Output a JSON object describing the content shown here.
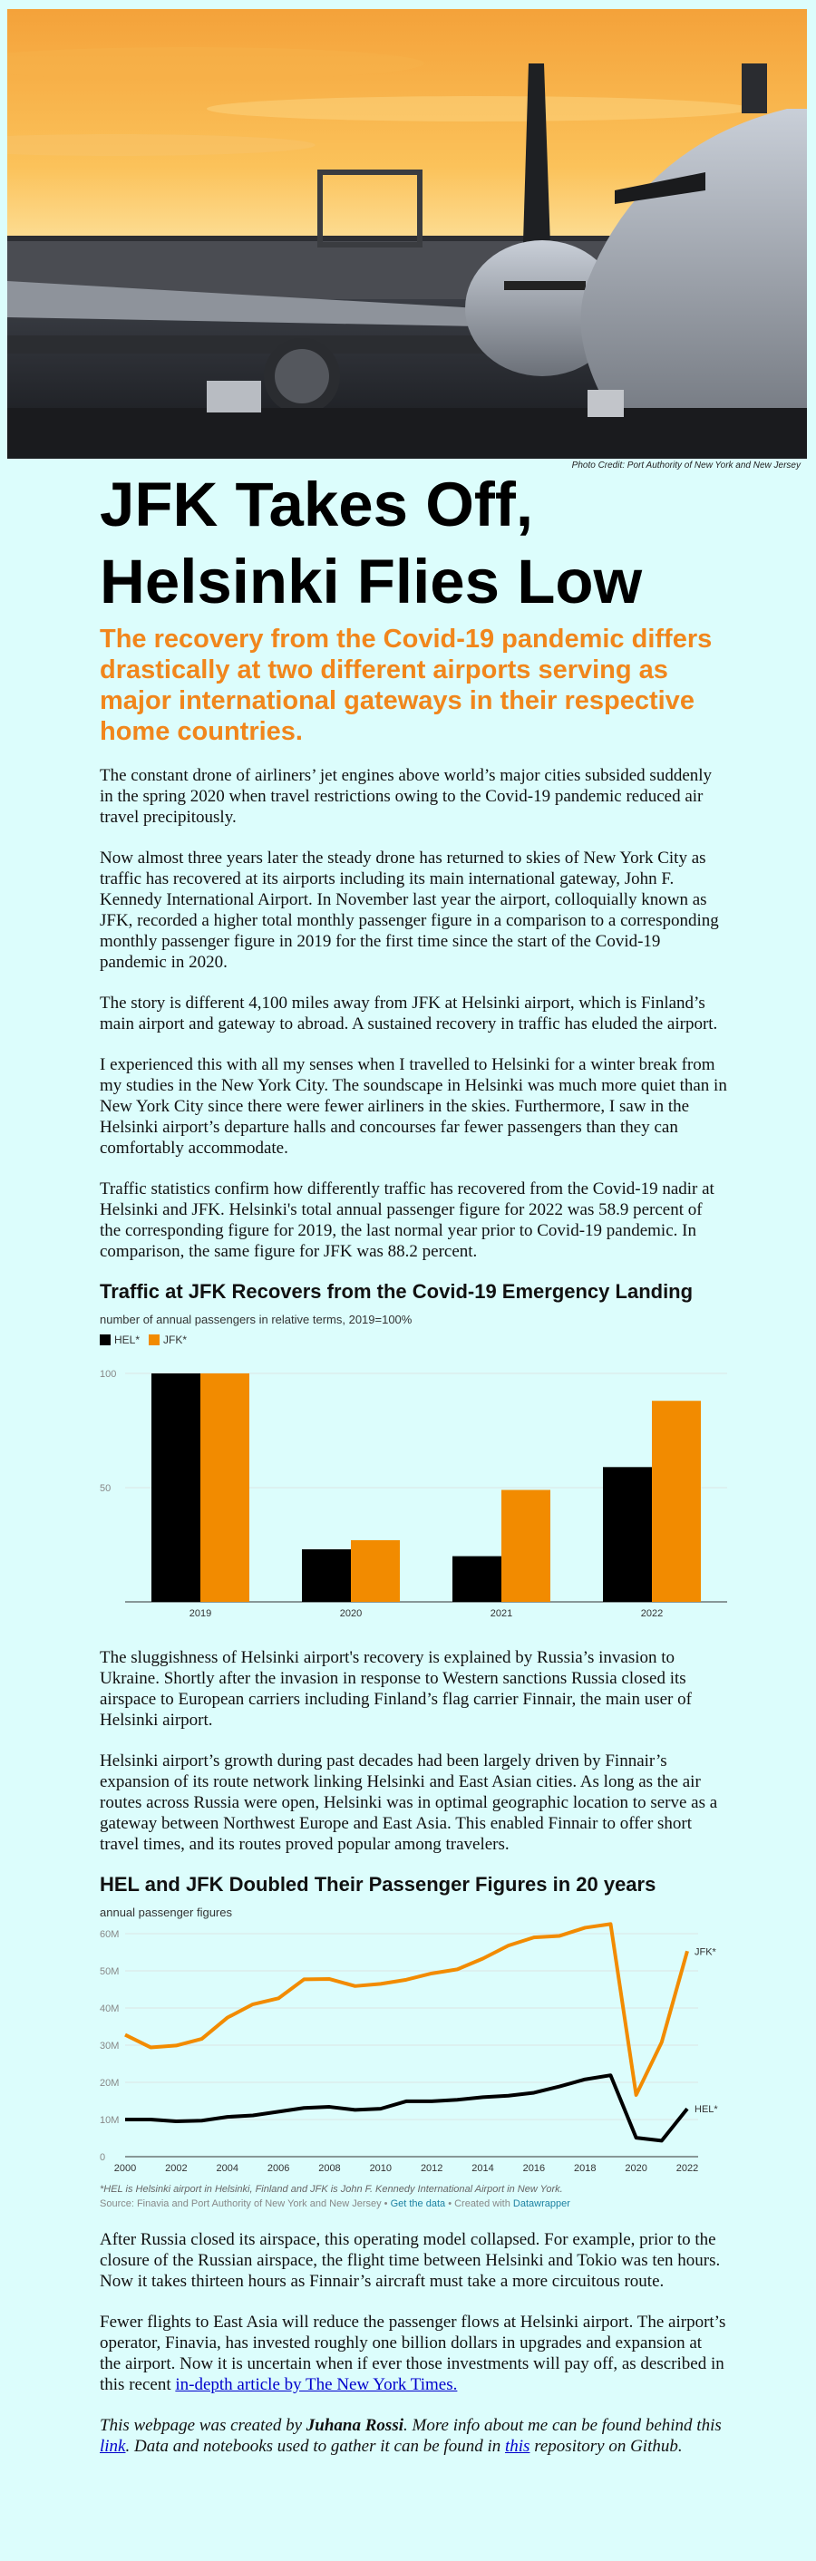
{
  "hero": {
    "alt": "Airliners at sunset at JFK airport",
    "credit": "Photo Credit: Port Authority of New York and New Jersey"
  },
  "article": {
    "title": "JFK Takes Off, Helsinki Flies Low",
    "subtitle": "The recovery from the Covid-19 pandemic differs drastically at two different airports serving as major international gateways in their respective home countries.",
    "paragraphs": [
      "The constant drone of airliners’ jet engines above world’s major cities subsided suddenly in the spring 2020 when travel restrictions owing to the Covid-19 pandemic reduced air travel precipitously.",
      "Now almost three years later the steady drone has returned to skies of New York City as traffic has recovered at its airports including its main international gateway, John F. Kennedy International Airport. In November last year the airport, colloquially known as JFK, recorded a higher total monthly passenger figure in a comparison to a corresponding monthly passenger figure in 2019 for the first time since the start of the Covid-19 pandemic in 2020.",
      "The story is different 4,100 miles away from JFK at Helsinki airport, which is Finland’s main airport and gateway to abroad. A sustained recovery in traffic has eluded the airport.",
      "I experienced this with all my senses when I travelled to Helsinki for a winter break from my studies in the New York City. The soundscape in Helsinki was much more quiet than in New York City since there were fewer airliners in the skies. Furthermore, I saw in the Helsinki airport’s departure halls and concourses far fewer passengers than they can comfortably accommodate.",
      "Traffic statistics confirm how differently traffic has recovered from the Covid-19 nadir at Helsinki and JFK. Helsinki's total annual passenger figure for 2022 was 58.9 percent of the corresponding figure for 2019, the last normal year prior to Covid-19 pandemic. In comparison, the same figure for JFK was 88.2 percent.",
      "The sluggishness of Helsinki airport's recovery is explained by Russia’s invasion to Ukraine. Shortly after the invasion in response to Western sanctions Russia closed its airspace to European carriers including Finland’s flag carrier Finnair, the main user of Helsinki airport.",
      "Helsinki airport’s growth during past decades had been largely driven by Finnair’s expansion of its route network linking Helsinki and East Asian cities. As long as the air routes across Russia were open, Helsinki was in optimal geographic location to serve as a gateway between Northwest Europe and East Asia. This enabled Finnair to offer short travel times, and its routes proved popular among travelers.",
      "After Russia closed its airspace, this operating model collapsed. For example, prior to the closure of the Russian airspace, the flight time between Helsinki and Tokio was ten hours. Now it takes thirteen hours as Finnair’s aircraft must take a more circuitous route.",
      "Fewer flights to East Asia will reduce the passenger flows at Helsinki airport. The airport’s operator, Finavia, has invested roughly one billion dollars in upgrades and expansion at the airport. Now it is uncertain when if ever those investments will pay off, as described in this recent"
    ],
    "nyt_link": "in-depth article by The New York Times.",
    "footer": {
      "pre": "This webpage was created by",
      "author": "Juhana Rossi",
      "mid1": ". More info about me can be found behind this",
      "link1": "link",
      "mid2": ". Data and notebooks used to gather it can be found in",
      "link2": "this",
      "post": "repository on Github."
    }
  },
  "colors": {
    "hel": "#000000",
    "jfk": "#f28b00",
    "background": "#dcfdfc",
    "accent": "#f1861c"
  },
  "chart_data": [
    {
      "type": "bar",
      "title": "Traffic at JFK Recovers from the Covid-19 Emergency Landing",
      "subtitle": "number of annual passengers in relative terms, 2019=100%",
      "categories": [
        "2019",
        "2020",
        "2021",
        "2022"
      ],
      "series": [
        {
          "name": "HEL*",
          "values": [
            100,
            23,
            20,
            59
          ]
        },
        {
          "name": "JFK*",
          "values": [
            100,
            27,
            49,
            88
          ]
        }
      ],
      "ylim": [
        0,
        100
      ],
      "yticks": [
        50,
        100
      ]
    },
    {
      "type": "line",
      "title": "HEL and JFK Doubled Their Passenger Figures in 20 years",
      "subtitle": "annual passenger figures",
      "x": [
        2000,
        2001,
        2002,
        2003,
        2004,
        2005,
        2006,
        2007,
        2008,
        2009,
        2010,
        2011,
        2012,
        2013,
        2014,
        2015,
        2016,
        2017,
        2018,
        2019,
        2020,
        2021,
        2022
      ],
      "series": [
        {
          "name": "JFK*",
          "values": [
            32.8,
            29.4,
            29.9,
            31.7,
            37.4,
            41.0,
            42.6,
            47.7,
            47.8,
            45.9,
            46.5,
            47.6,
            49.3,
            50.4,
            53.3,
            56.8,
            59.0,
            59.4,
            61.6,
            62.6,
            16.6,
            30.8,
            55.3
          ]
        },
        {
          "name": "HEL*",
          "values": [
            10.0,
            10.0,
            9.5,
            9.7,
            10.7,
            11.1,
            12.1,
            13.1,
            13.4,
            12.6,
            12.9,
            14.9,
            14.9,
            15.3,
            16.0,
            16.4,
            17.2,
            18.9,
            20.8,
            21.9,
            5.1,
            4.3,
            12.9
          ]
        }
      ],
      "ylim": [
        0,
        60
      ],
      "yticks": [
        "0",
        "10M",
        "20M",
        "30M",
        "40M",
        "50M",
        "60M"
      ],
      "xticks": [
        "2000",
        "2002",
        "2004",
        "2006",
        "2008",
        "2010",
        "2012",
        "2014",
        "2016",
        "2018",
        "2020",
        "2022"
      ],
      "note": "*HEL is Helsinki airport in Helsinki, Finland and JFK is John F. Kennedy International Airport in New York.",
      "source_pre": "Source: Finavia and Port Authority of New York and New Jersey •",
      "get_data": "Get the data",
      "created_with": "• Created with",
      "datawrapper": "Datawrapper"
    }
  ]
}
